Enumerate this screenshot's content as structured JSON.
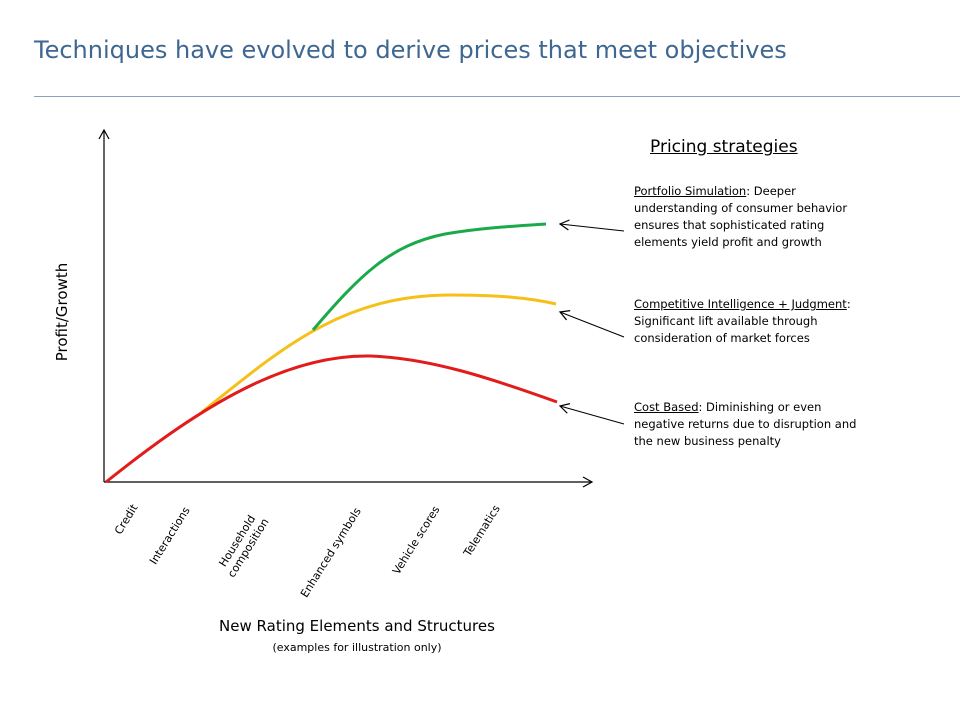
{
  "title": "Techniques have evolved to derive prices that meet objectives",
  "y_axis_label": "Profit/Growth",
  "x_axis_label": "New Rating Elements and Structures",
  "x_axis_sublabel": "(examples for illustration only)",
  "x_tick_labels": {
    "credit": "Credit",
    "interactions": "Interactions",
    "household_line1": "Household",
    "household_line2": "composition",
    "enhanced_symbols": "Enhanced symbols",
    "vehicle_scores": "Vehicle scores",
    "telematics": "Telematics"
  },
  "strategies": {
    "heading": "Pricing strategies",
    "portfolio": {
      "name": "Portfolio Simulation",
      "description": ": Deeper understanding of consumer behavior ensures that sophisticated rating elements yield profit and growth",
      "color": "#1aaa4a"
    },
    "competitive": {
      "name": "Competitive Intelligence + Judgment",
      "description": ": Significant lift available through consideration of market forces",
      "color": "#f5c01a"
    },
    "cost": {
      "name": "Cost Based",
      "description": ": Diminishing or even negative returns due to disruption and the new business penalty",
      "color": "#e21b1b"
    }
  },
  "colors": {
    "title": "#3f6791",
    "axes": "#000000"
  }
}
